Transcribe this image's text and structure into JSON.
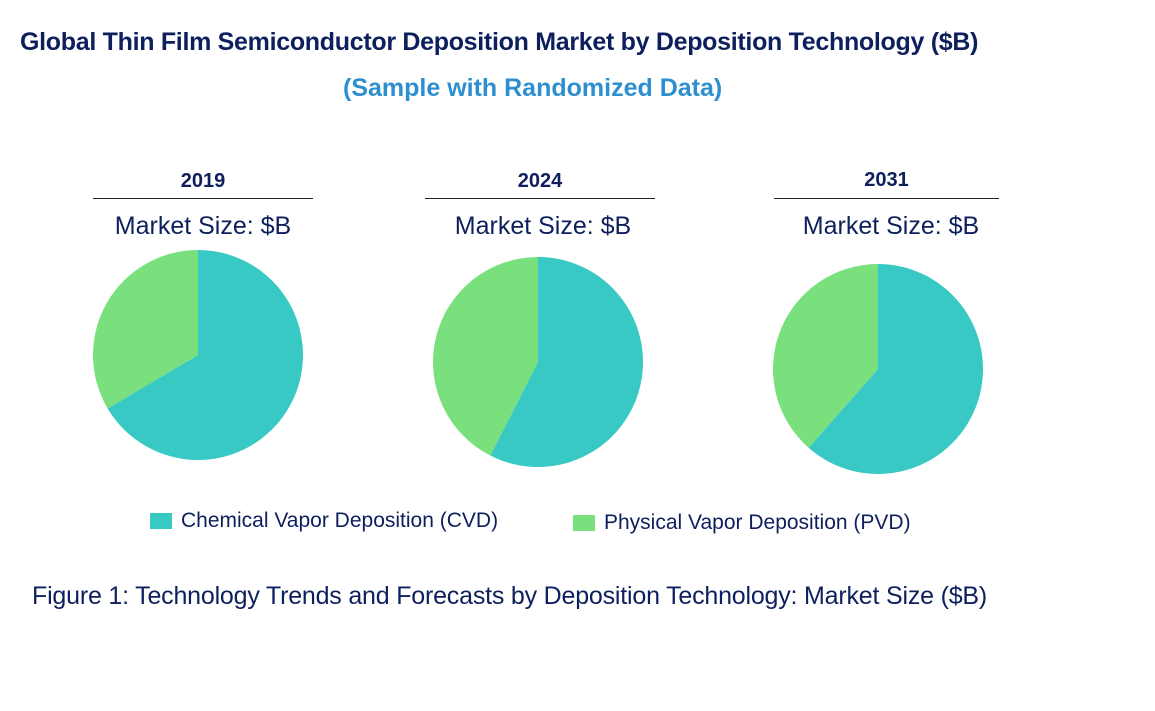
{
  "header": {
    "title": "Global Thin Film Semiconductor Deposition Market by Deposition Technology ($B)",
    "subtitle": "(Sample with Randomized Data)"
  },
  "chart_data": [
    {
      "type": "pie",
      "title": "2019",
      "subtitle": "Market Size: $B",
      "categories": [
        "Chemical Vapor Deposition (CVD)",
        "Physical Vapor Deposition (PVD)"
      ],
      "values": [
        66.5,
        33.5
      ]
    },
    {
      "type": "pie",
      "title": "2024",
      "subtitle": "Market Size: $B",
      "categories": [
        "Chemical Vapor Deposition (CVD)",
        "Physical Vapor Deposition (PVD)"
      ],
      "values": [
        57.5,
        42.5
      ]
    },
    {
      "type": "pie",
      "title": "2031",
      "subtitle": "Market Size: $B",
      "categories": [
        "Chemical Vapor Deposition (CVD)",
        "Physical Vapor Deposition (PVD)"
      ],
      "values": [
        61.5,
        38.5
      ]
    }
  ],
  "legend": {
    "items": [
      {
        "label": "Chemical Vapor Deposition (CVD)",
        "color": "#38c9c5"
      },
      {
        "label": "Physical Vapor Deposition (PVD)",
        "color": "#7ae07e"
      }
    ]
  },
  "caption": "Figure 1: Technology Trends and Forecasts by Deposition Technology: Market Size ($B)"
}
